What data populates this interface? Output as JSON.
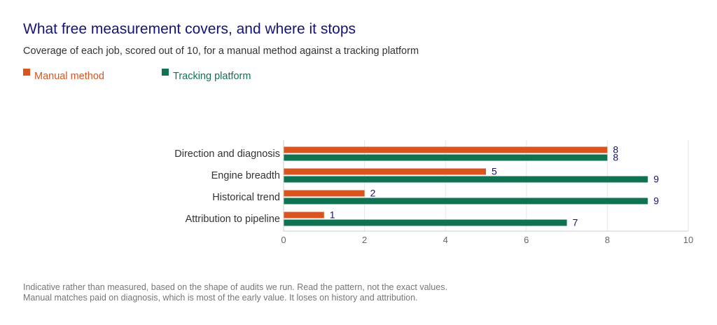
{
  "title": "What free measurement covers, and where it stops",
  "subtitle": "Coverage of each job, scored out of 10, for a manual method against a tracking platform",
  "footnotes": [
    "Indicative rather than measured, based on the shape of audits we run. Read the pattern, not the exact values.",
    "Manual matches paid on diagnosis, which is most of the early value. It loses on history and attribution."
  ],
  "chart_data": {
    "type": "bar",
    "orientation": "horizontal",
    "categories": [
      "Direction and diagnosis",
      "Engine breadth",
      "Historical trend",
      "Attribution to pipeline"
    ],
    "series": [
      {
        "name": "Manual method",
        "color": "#d9541e",
        "values": [
          8,
          5,
          2,
          1
        ]
      },
      {
        "name": "Tracking platform",
        "color": "#0f7353",
        "values": [
          8,
          9,
          9,
          7
        ]
      }
    ],
    "xlim": [
      0,
      10
    ],
    "xticks": [
      "0",
      "2",
      "4",
      "6",
      "8",
      "10"
    ],
    "grid": true,
    "legend_position": "top-left",
    "value_label_color": "#13137a"
  }
}
